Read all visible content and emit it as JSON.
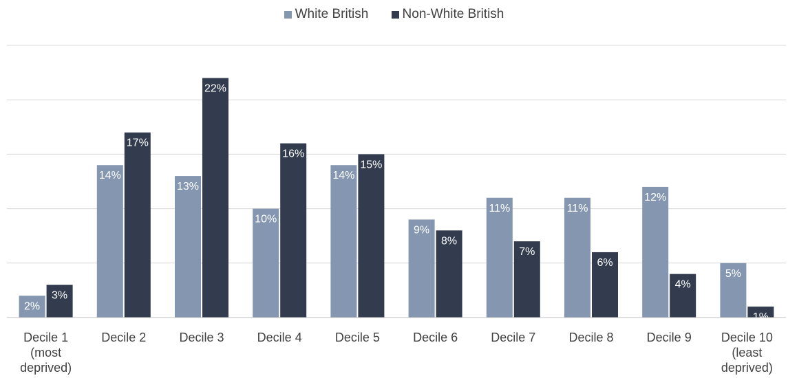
{
  "chart_data": {
    "type": "bar",
    "categories": [
      [
        "Decile 1",
        "(most",
        "deprived)"
      ],
      [
        "Decile 2"
      ],
      [
        "Decile 3"
      ],
      [
        "Decile 4"
      ],
      [
        "Decile 5"
      ],
      [
        "Decile 6"
      ],
      [
        "Decile 7"
      ],
      [
        "Decile 8"
      ],
      [
        "Decile 9"
      ],
      [
        "Decile 10",
        "(least",
        "deprived)"
      ]
    ],
    "series": [
      {
        "name": "White British",
        "color": "#8496b0",
        "values": [
          2,
          14,
          13,
          10,
          14,
          9,
          11,
          11,
          12,
          5
        ],
        "labels": [
          "2%",
          "14%",
          "13%",
          "10%",
          "14%",
          "9%",
          "11%",
          "11%",
          "12%",
          "5%"
        ]
      },
      {
        "name": "Non-White British",
        "color": "#323c4e",
        "values": [
          3,
          17,
          22,
          16,
          15,
          8,
          7,
          6,
          4,
          1
        ],
        "labels": [
          "3%",
          "17%",
          "22%",
          "16%",
          "15%",
          "8%",
          "7%",
          "6%",
          "4%",
          "1%"
        ]
      }
    ],
    "ylim": [
      0,
      25
    ],
    "grid": true,
    "legend_position": "top-center"
  }
}
